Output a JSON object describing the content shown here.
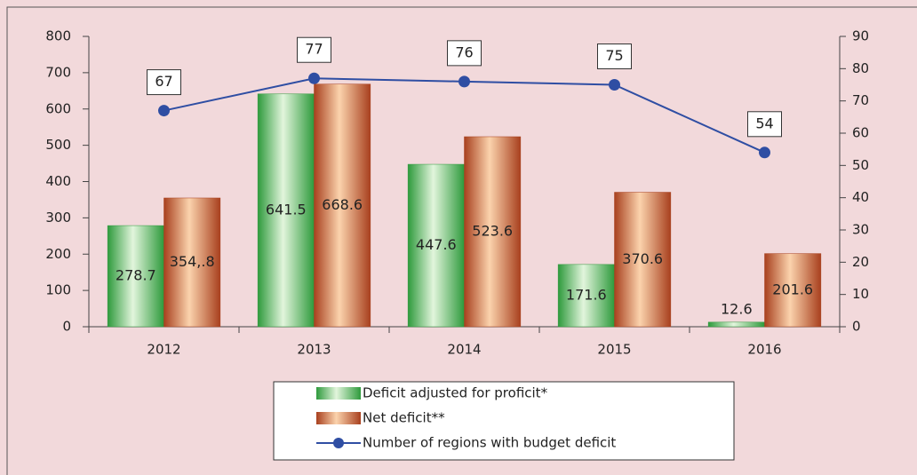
{
  "chart_data": {
    "type": "bar",
    "categories": [
      "2012",
      "2013",
      "2014",
      "2015",
      "2016"
    ],
    "series": [
      {
        "name": "Deficit  adjusted for proficit*",
        "color": "#2e9a3c",
        "values": [
          278.7,
          641.5,
          447.6,
          171.6,
          12.6
        ]
      },
      {
        "name": "Net deficit**",
        "color": "#a8401e",
        "values": [
          354.8,
          668.6,
          523.6,
          370.6,
          201.6
        ],
        "value_labels": [
          "354,.8",
          "668.6",
          "523.6",
          "370.6",
          "201.6"
        ]
      },
      {
        "name": "Number of regions with budget deficit",
        "color": "#2f4ea3",
        "type": "line",
        "axis": "y2",
        "values": [
          67,
          77,
          76,
          75,
          54
        ]
      }
    ],
    "ylim": [
      0,
      800
    ],
    "yticks": [
      0,
      100,
      200,
      300,
      400,
      500,
      600,
      700,
      800
    ],
    "y2lim": [
      0,
      90
    ],
    "y2ticks": [
      0,
      10,
      20,
      30,
      40,
      50,
      60,
      70,
      80,
      90
    ],
    "legend": "bottom"
  }
}
